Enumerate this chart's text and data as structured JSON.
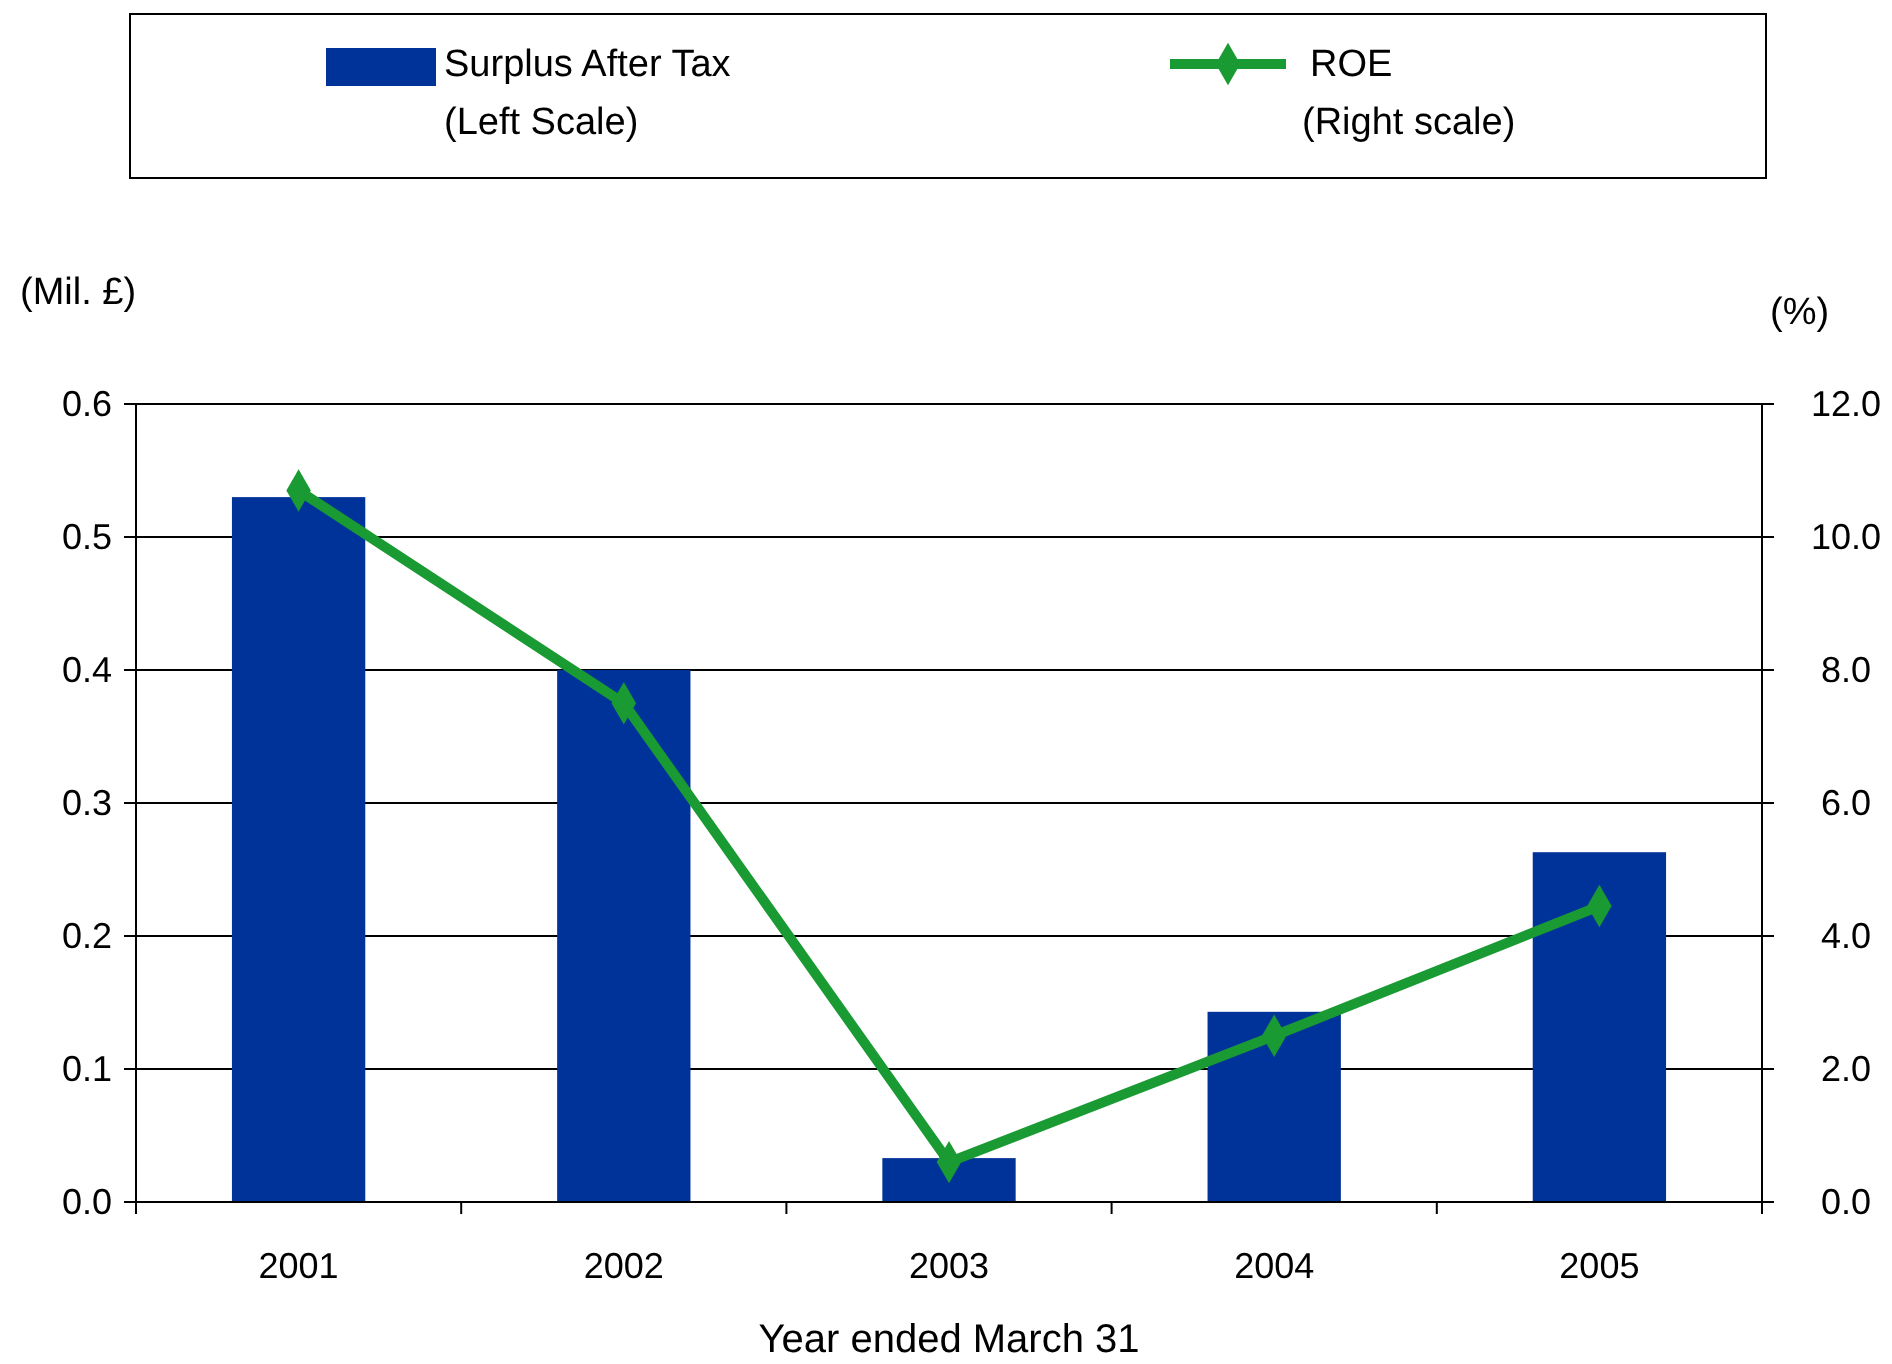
{
  "chart_data": {
    "type": "bar",
    "xlabel": "Year ended March 31",
    "ylabel": "(Mil. £)",
    "y2label": "(%)",
    "categories": [
      "2001",
      "2002",
      "2003",
      "2004",
      "2005"
    ],
    "series": [
      {
        "name": "Surplus After Tax\n(Left Scale)",
        "color": "#003399",
        "values": [
          0.53,
          0.4,
          0.033,
          0.143,
          0.263
        ]
      },
      {
        "name": "ROE\n(Right scale)",
        "type": "line",
        "axis": "y2",
        "color": "#1a9a32",
        "marker": "diamond",
        "values": [
          10.7,
          7.5,
          0.6,
          2.5,
          4.45
        ]
      }
    ],
    "ylim": [
      0,
      0.6
    ],
    "yticks": [
      {
        "value": 0,
        "label": "0.0"
      },
      0.1,
      0.2,
      0.3,
      0.4,
      0.5,
      0.6
    ],
    "y2lim": [
      0,
      12
    ],
    "y2ticks": [
      {
        "value": 0,
        "label": "0.0"
      },
      {
        "value": 2,
        "label": "2.0"
      },
      {
        "value": 4,
        "label": "4.0"
      },
      {
        "value": 6,
        "label": "6.0"
      },
      {
        "value": 8,
        "label": "8.0"
      },
      {
        "value": 10,
        "label": "10.0"
      },
      {
        "value": 12,
        "label": "12.0"
      }
    ],
    "grid": "y",
    "legend": "top"
  }
}
